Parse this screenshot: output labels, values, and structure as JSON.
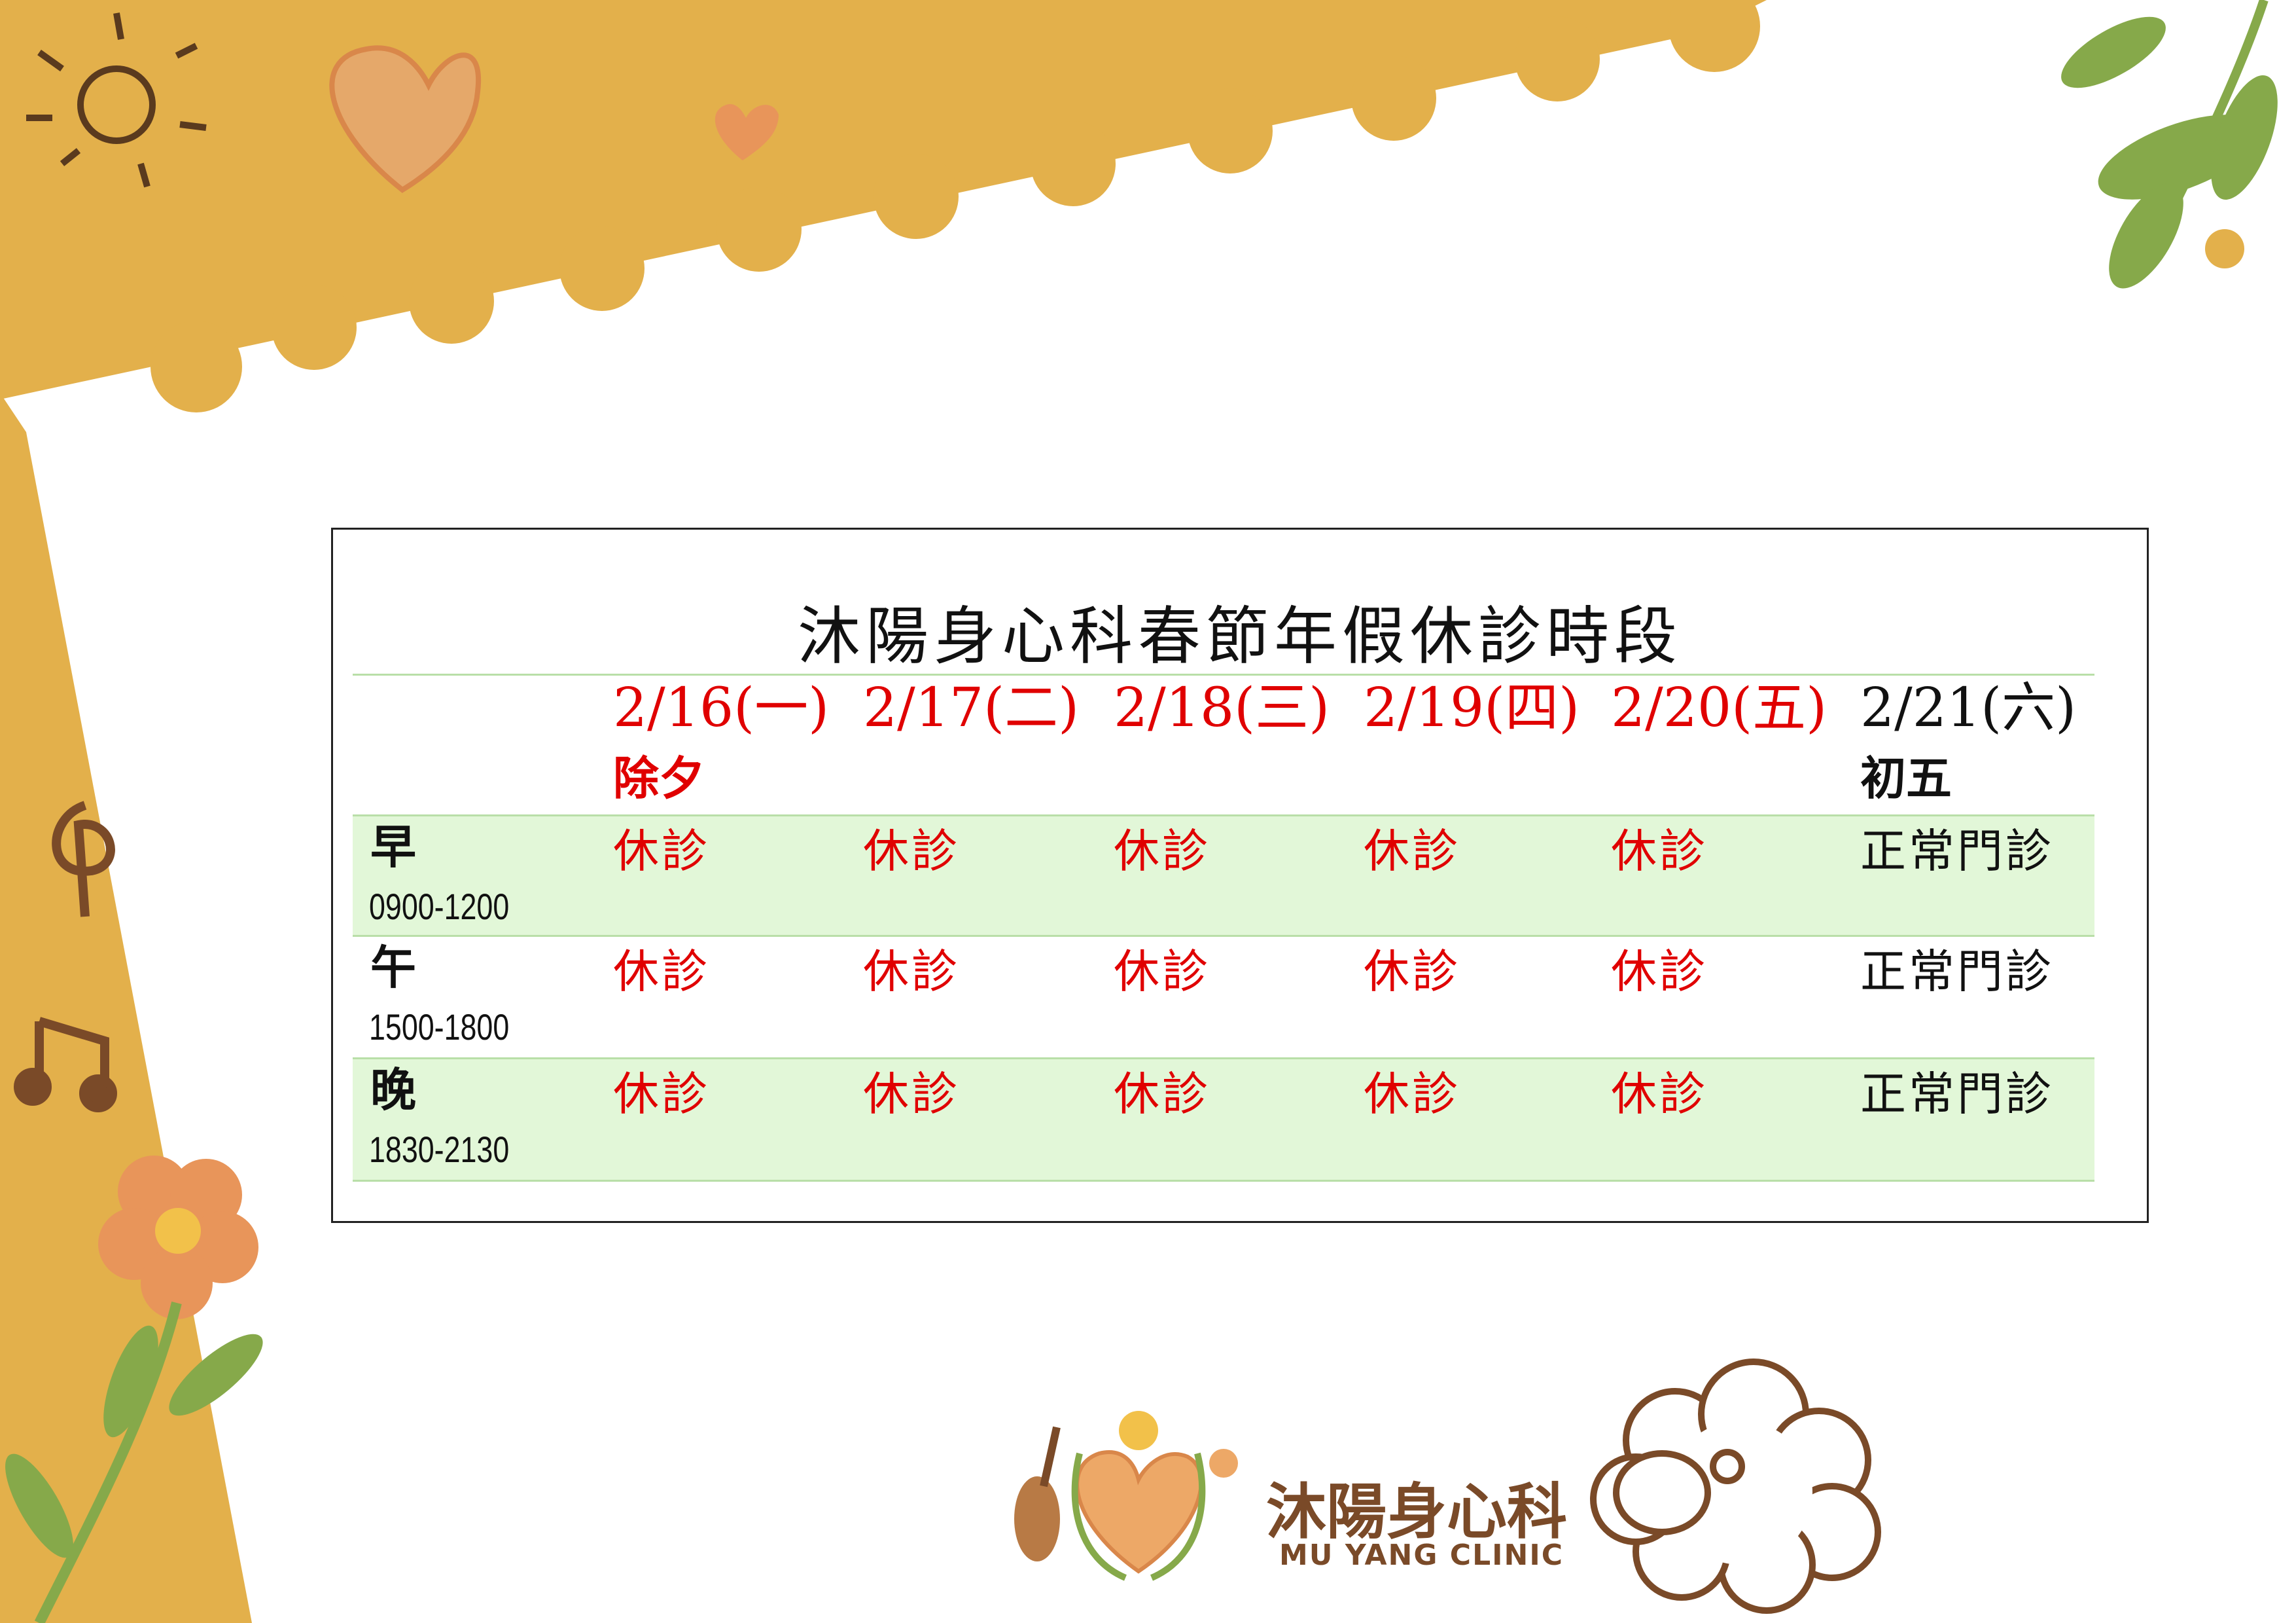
{
  "title": "沐陽身心科春節年假休診時段",
  "columns": [
    {
      "date": "2/16(一)",
      "note": "除夕",
      "color": "#e00000"
    },
    {
      "date": "2/17(二)",
      "note": "",
      "color": "#e00000"
    },
    {
      "date": "2/18(三)",
      "note": "",
      "color": "#e00000"
    },
    {
      "date": "2/19(四)",
      "note": "",
      "color": "#e00000"
    },
    {
      "date": "2/20(五)",
      "note": "",
      "color": "#e00000"
    },
    {
      "date": "2/21(六)",
      "note": "初五",
      "color": "#111111"
    }
  ],
  "rows": [
    {
      "slot": "早",
      "time": "0900-1200",
      "cells": [
        "休診",
        "休診",
        "休診",
        "休診",
        "休診",
        "正常門診"
      ]
    },
    {
      "slot": "午",
      "time": "1500-1800",
      "cells": [
        "休診",
        "休診",
        "休診",
        "休診",
        "休診",
        "正常門診"
      ]
    },
    {
      "slot": "晚",
      "time": "1830-2130",
      "cells": [
        "休診",
        "休診",
        "休診",
        "休診",
        "休診",
        "正常門診"
      ]
    }
  ],
  "logo": {
    "name_zh": "沐陽身心科",
    "name_en": "MU YANG CLINIC"
  },
  "colors": {
    "closed": "#e00000",
    "open": "#111111",
    "band": "#e2f7d8",
    "frame": "#e3b04b",
    "brand": "#7a4a28"
  }
}
